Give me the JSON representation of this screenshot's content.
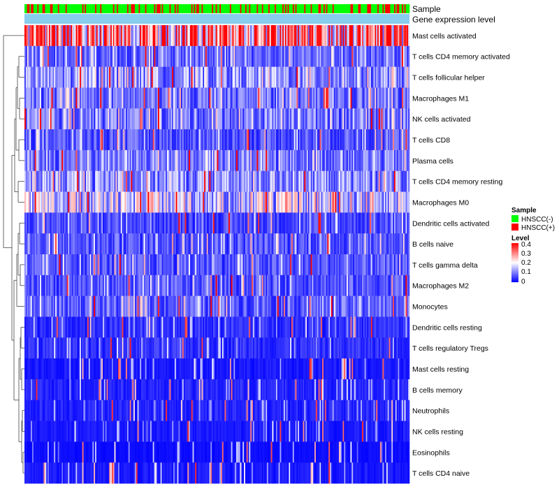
{
  "chart_data": {
    "type": "heatmap",
    "title": "",
    "row_labels": [
      "Mast cells activated",
      "T cells CD4 memory activated",
      "T cells follicular helper",
      "Macrophages M1",
      "NK cells activated",
      "T cells CD8",
      "Plasma cells",
      "T cells CD4 memory resting",
      "Macrophages M0",
      "Dendritic cells activated",
      "B cells naive",
      "T cells gamma delta",
      "Macrophages M2",
      "Monocytes",
      "Dendritic cells resting",
      "T cells regulatory  Tregs",
      "Mast cells resting",
      "B cells memory",
      "Neutrophils",
      "NK cells resting",
      "Eosinophils",
      "T cells CD4 naive"
    ],
    "row_mean_level": [
      0.3,
      0.08,
      0.12,
      0.09,
      0.1,
      0.07,
      0.1,
      0.12,
      0.16,
      0.06,
      0.07,
      0.07,
      0.07,
      0.08,
      0.04,
      0.04,
      0.02,
      0.03,
      0.03,
      0.02,
      0.01,
      0.02
    ],
    "column_count": 300,
    "annotation_tracks": [
      "Sample",
      "Gene expression level"
    ],
    "sample_groups": [
      "HNSCC(-)",
      "HNSCC(+)"
    ],
    "sample_group_share": {
      "HNSCC(-)": 0.72,
      "HNSCC(+)": 0.28
    },
    "color_scale": {
      "range": [
        0,
        0.4
      ],
      "ticks": [
        "0.4",
        "0.3",
        "0.2",
        "0.1",
        "0"
      ],
      "colors": [
        "#0000ff",
        "#ffffff",
        "#ff0000"
      ]
    }
  },
  "legend": {
    "sample_title": "Sample",
    "level_title": "Level",
    "items": [
      {
        "label": "HNSCC(-)",
        "color": "#00ff00"
      },
      {
        "label": "HNSCC(+)",
        "color": "#ff0000"
      }
    ]
  },
  "colors": {
    "gene_track": "#88ccee",
    "low": "#0000ff",
    "mid": "#ffffff",
    "high": "#ff0000",
    "dendro": "#444444"
  }
}
